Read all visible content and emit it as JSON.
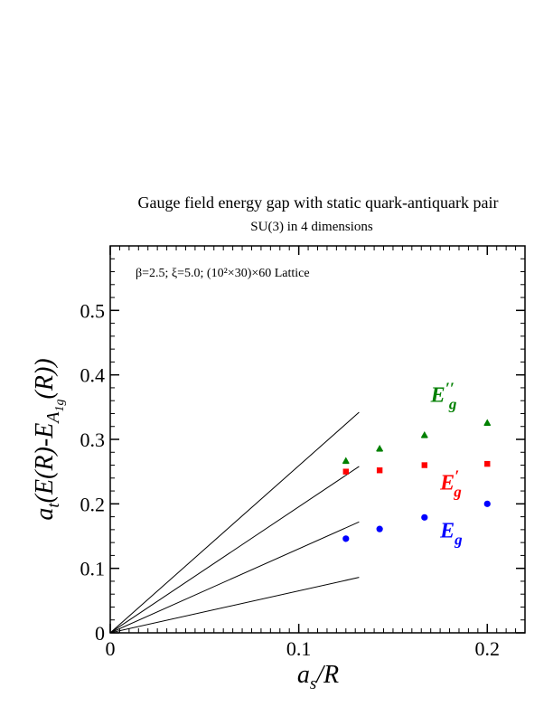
{
  "chart_data": {
    "type": "scatter",
    "title": "Gauge field energy gap with static quark-antiquark pair",
    "subtitle": "SU(3) in 4 dimensions",
    "annotation": "β=2.5;  ξ=5.0;  (10²×30)×60 Lattice",
    "xlabel": {
      "main": "a",
      "sub": "s",
      "rest": "/R"
    },
    "ylabel": {
      "a": "a",
      "a_sub": "t",
      "mid": "(E(R)-E",
      "sym": "A",
      "sym_sub": "1g",
      "end": "(R))"
    },
    "xlim": [
      0,
      0.22
    ],
    "ylim": [
      0,
      0.6
    ],
    "x_ticks": [
      0,
      0.1,
      0.2
    ],
    "x_tick_labels": [
      "0",
      "0.1",
      "0.2"
    ],
    "y_ticks": [
      0,
      0.1,
      0.2,
      0.3,
      0.4,
      0.5
    ],
    "y_tick_labels": [
      "0",
      "0.1",
      "0.2",
      "0.3",
      "0.4",
      "0.5"
    ],
    "grid": false,
    "series": [
      {
        "name": "E_g",
        "label_main": "E",
        "label_sub": "g",
        "label_sup": "",
        "color": "#0000ff",
        "marker": "circle",
        "x": [
          0.125,
          0.1429,
          0.1667,
          0.2
        ],
        "y": [
          0.146,
          0.161,
          0.179,
          0.2
        ],
        "label_at": [
          0.175,
          0.148
        ]
      },
      {
        "name": "E_g'",
        "label_main": "E",
        "label_sub": "g",
        "label_sup": "′",
        "color": "#ff0000",
        "marker": "square",
        "x": [
          0.125,
          0.1429,
          0.1667,
          0.2
        ],
        "y": [
          0.25,
          0.252,
          0.26,
          0.262
        ],
        "label_at": [
          0.175,
          0.222
        ]
      },
      {
        "name": "E_g''",
        "label_main": "E",
        "label_sub": "g",
        "label_sup": "′′",
        "color": "#008000",
        "marker": "triangle",
        "x": [
          0.125,
          0.1429,
          0.1667,
          0.2
        ],
        "y": [
          0.267,
          0.286,
          0.307,
          0.326
        ],
        "label_at": [
          0.17,
          0.358
        ]
      }
    ],
    "reference_lines": [
      {
        "x": [
          0,
          0.132
        ],
        "y": [
          0,
          0.342
        ]
      },
      {
        "x": [
          0,
          0.132
        ],
        "y": [
          0,
          0.258
        ]
      },
      {
        "x": [
          0,
          0.132
        ],
        "y": [
          0,
          0.172
        ]
      },
      {
        "x": [
          0,
          0.132
        ],
        "y": [
          0,
          0.086
        ]
      }
    ]
  }
}
